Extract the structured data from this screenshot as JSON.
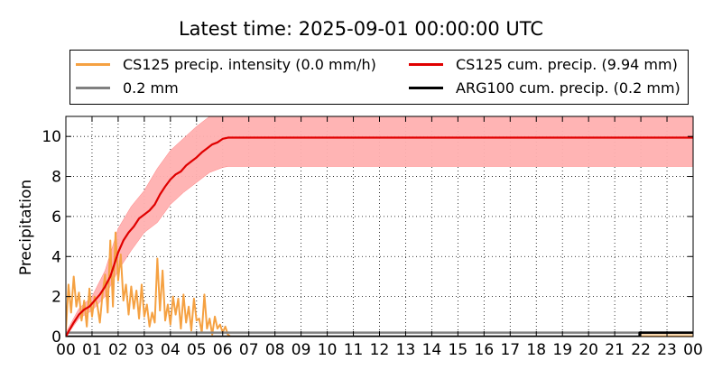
{
  "chart_data": {
    "type": "line",
    "title": "Latest time: 2025-09-01 00:00:00 UTC",
    "ylabel": "Precipitation",
    "xlabel": "",
    "xlim": [
      0,
      24
    ],
    "ylim": [
      0,
      11
    ],
    "grid": true,
    "legend_placement": "top",
    "x_ticks": [
      "00",
      "01",
      "02",
      "03",
      "04",
      "05",
      "06",
      "07",
      "08",
      "09",
      "10",
      "11",
      "12",
      "13",
      "14",
      "15",
      "16",
      "17",
      "18",
      "19",
      "20",
      "21",
      "22",
      "23",
      "00"
    ],
    "y_ticks": [
      0,
      2,
      4,
      6,
      8,
      10
    ],
    "legend": [
      {
        "label": "CS125 precip. intensity (0.0 mm/h)",
        "color": "#f5a142"
      },
      {
        "label": "CS125 cum. precip. (9.94 mm)",
        "color": "#e00000"
      },
      {
        "label": "0.2 mm",
        "color": "#808080"
      },
      {
        "label": "ARG100 cum. precip. (0.2 mm)",
        "color": "#000000"
      }
    ],
    "series": [
      {
        "name": "CS125 cum. precip. (9.94 mm)",
        "color": "#e00000",
        "x": [
          0,
          0.1,
          0.3,
          0.5,
          0.7,
          0.9,
          1.1,
          1.3,
          1.5,
          1.7,
          1.9,
          2.0,
          2.2,
          2.4,
          2.6,
          2.8,
          3.0,
          3.2,
          3.4,
          3.6,
          3.8,
          4.0,
          4.2,
          4.4,
          4.6,
          4.8,
          5.0,
          5.2,
          5.4,
          5.6,
          5.8,
          6.0,
          6.2,
          7,
          8,
          10,
          12,
          14,
          16,
          18,
          20,
          22,
          24
        ],
        "y": [
          0,
          0.25,
          0.7,
          1.1,
          1.35,
          1.5,
          1.8,
          2.1,
          2.5,
          3.0,
          3.8,
          4.2,
          4.8,
          5.2,
          5.5,
          5.9,
          6.1,
          6.3,
          6.6,
          7.1,
          7.5,
          7.85,
          8.1,
          8.25,
          8.55,
          8.75,
          8.95,
          9.2,
          9.4,
          9.6,
          9.7,
          9.88,
          9.94,
          9.94,
          9.94,
          9.94,
          9.94,
          9.94,
          9.94,
          9.94,
          9.94,
          9.94,
          9.94
        ]
      },
      {
        "name": "CS125 cum. precip. uncertainty band",
        "color": "#ffb0b0",
        "x": [
          0,
          0.5,
          1.0,
          1.5,
          2.0,
          2.5,
          3.0,
          3.5,
          4.0,
          4.5,
          5.0,
          5.5,
          5.8,
          6.0,
          6.2,
          24
        ],
        "upper": [
          0.2,
          1.4,
          2.0,
          3.3,
          5.4,
          6.5,
          7.3,
          8.4,
          9.3,
          9.9,
          10.5,
          11.0,
          11.0,
          11.0,
          11.0,
          11.0
        ],
        "lower": [
          0,
          0.9,
          1.3,
          2.0,
          3.3,
          4.3,
          5.2,
          5.7,
          6.6,
          7.2,
          7.7,
          8.2,
          8.35,
          8.45,
          8.5,
          8.5
        ]
      },
      {
        "name": "CS125 precip. intensity (0.0 mm/h)",
        "color": "#f5a142",
        "x": [
          0,
          0.1,
          0.2,
          0.3,
          0.4,
          0.5,
          0.6,
          0.7,
          0.8,
          0.9,
          1.0,
          1.1,
          1.2,
          1.3,
          1.4,
          1.5,
          1.6,
          1.7,
          1.8,
          1.9,
          2.0,
          2.1,
          2.2,
          2.3,
          2.4,
          2.5,
          2.6,
          2.7,
          2.8,
          2.9,
          3.0,
          3.1,
          3.2,
          3.3,
          3.4,
          3.5,
          3.6,
          3.7,
          3.8,
          3.9,
          4.0,
          4.1,
          4.2,
          4.3,
          4.4,
          4.5,
          4.6,
          4.7,
          4.8,
          4.9,
          5.0,
          5.1,
          5.2,
          5.3,
          5.4,
          5.5,
          5.6,
          5.7,
          5.8,
          5.9,
          6.0,
          6.1,
          6.2,
          6.3,
          6.5,
          7,
          10,
          24
        ],
        "y": [
          0.3,
          2.6,
          1.2,
          3.0,
          1.5,
          2.2,
          0.8,
          1.8,
          0.5,
          2.4,
          1.0,
          2.0,
          1.6,
          0.7,
          2.1,
          3.1,
          1.2,
          4.8,
          1.5,
          5.2,
          2.8,
          4.1,
          1.8,
          2.6,
          1.1,
          2.5,
          1.4,
          2.3,
          0.9,
          2.6,
          1.0,
          1.6,
          0.5,
          1.2,
          0.7,
          3.9,
          1.3,
          3.3,
          0.8,
          1.6,
          0.6,
          2.0,
          1.1,
          1.9,
          0.4,
          2.1,
          0.7,
          1.5,
          0.3,
          1.9,
          0.8,
          0.9,
          0.2,
          2.1,
          0.4,
          0.9,
          0.1,
          1.0,
          0.4,
          0.6,
          0.2,
          0.5,
          0.1,
          0.0,
          0.0,
          0.0,
          0.0,
          0.0
        ]
      },
      {
        "name": "0.2 mm",
        "color": "#808080",
        "x": [
          0,
          24
        ],
        "y": [
          0.2,
          0.2
        ]
      },
      {
        "name": "ARG100 cum. precip. (0.2 mm)",
        "color": "#000000",
        "x": [
          0,
          21.95,
          21.95,
          24
        ],
        "y": [
          0,
          0,
          0.2,
          0.2
        ]
      }
    ]
  }
}
